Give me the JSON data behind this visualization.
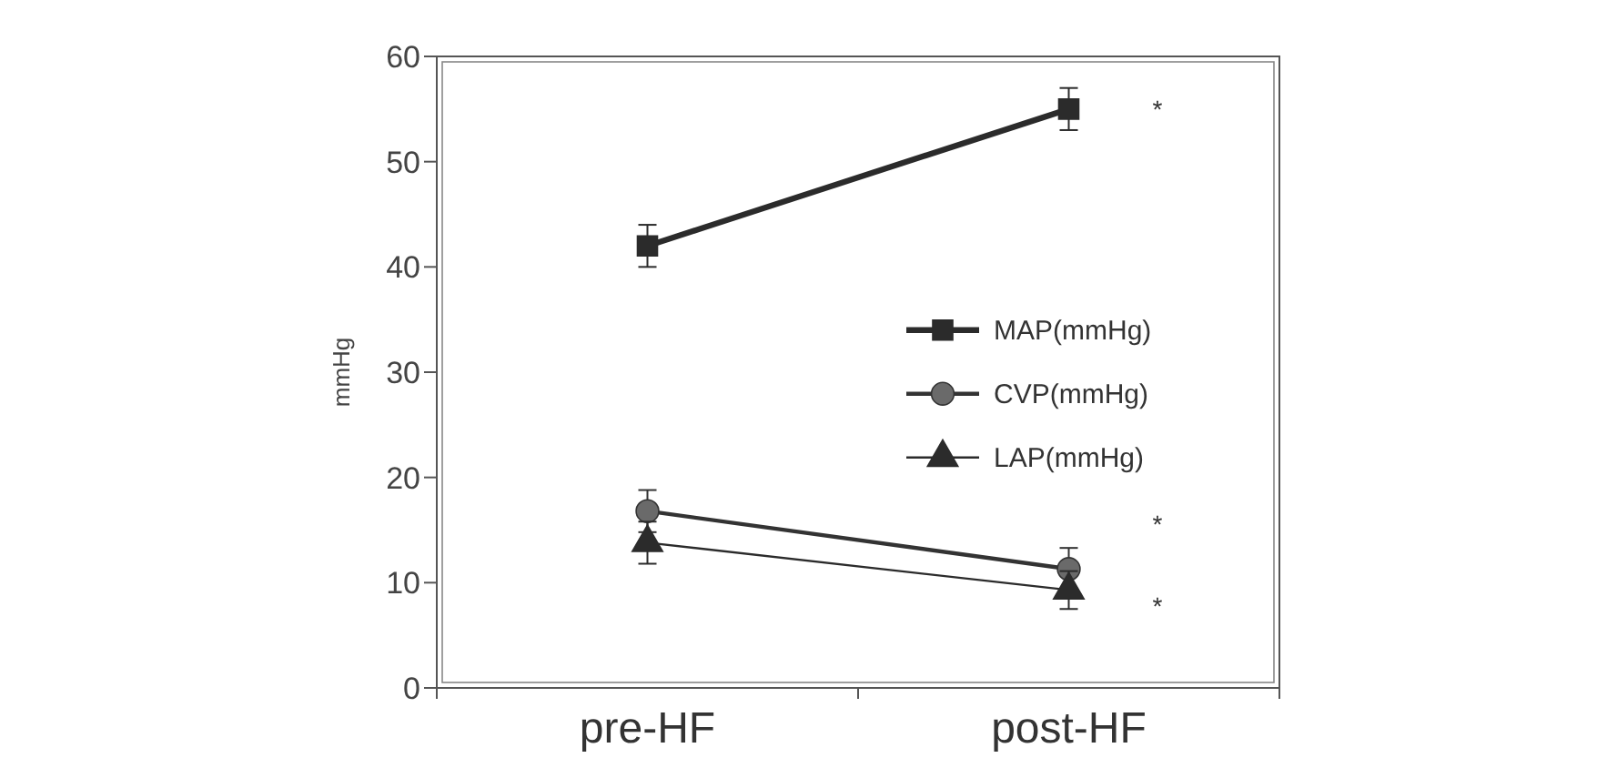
{
  "chart_data": {
    "type": "line",
    "ylabel": "mmHg",
    "categories": [
      "pre-HF",
      "post-HF"
    ],
    "ylim": [
      0,
      60
    ],
    "yticks": [
      0,
      10,
      20,
      30,
      40,
      50,
      60
    ],
    "legend": "right",
    "grid": false,
    "series": [
      {
        "name": "MAP(mmHg)",
        "color": "#2b2b2b",
        "values": [
          42,
          55
        ],
        "errors": [
          2,
          2
        ],
        "marker": "square"
      },
      {
        "name": "CVP(mmHg)",
        "color": "#333333",
        "values": [
          16.8,
          11.3
        ],
        "errors": [
          2,
          2
        ],
        "marker": "circle"
      },
      {
        "name": "LAP(mmHg)",
        "color": "#2b2b2b",
        "values": [
          13.8,
          9.3
        ],
        "errors": [
          2,
          1.8
        ],
        "marker": "triangle"
      }
    ],
    "annotations": [
      "*",
      "*",
      "*"
    ]
  }
}
